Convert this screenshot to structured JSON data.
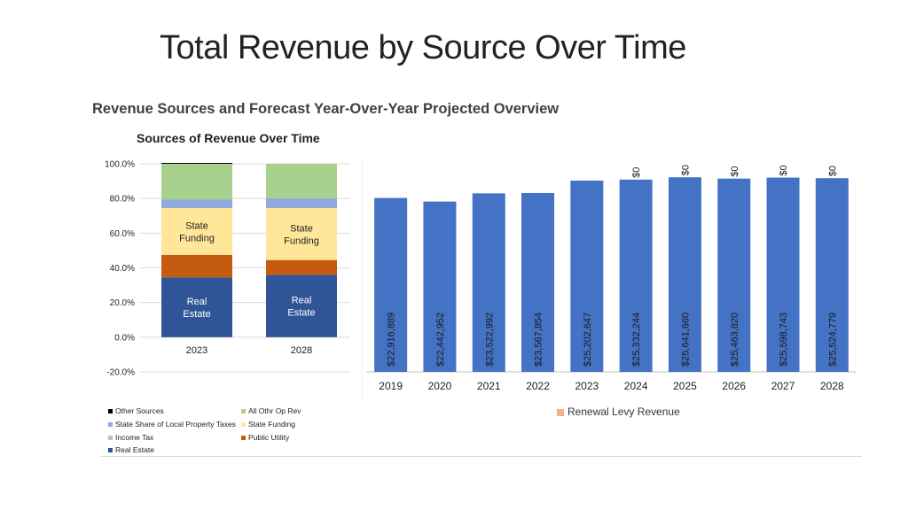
{
  "slide": {
    "title": "Total Revenue by Source Over Time"
  },
  "panel": {
    "title": "Revenue Sources and Forecast Year-Over-Year Projected Overview"
  },
  "colors": {
    "other_sources": "#000000",
    "state_share": "#8EA9DB",
    "income_tax": "#BFBFBF",
    "real_estate": "#2F5597",
    "all_othr_op_rev": "#A9D18E",
    "state_funding": "#FFE699",
    "public_utility": "#C55A11",
    "renewal_levy": "#F4B183",
    "bar_blue": "#4472C4"
  },
  "chart_data": [
    {
      "type": "bar",
      "stacked": true,
      "title": "Sources of Revenue Over Time",
      "categories": [
        "2023",
        "2028"
      ],
      "y_tick_labels": [
        "100.0%",
        "80.0%",
        "60.0%",
        "40.0%",
        "20.0%",
        "0.0%",
        "-20.0%"
      ],
      "ylim": [
        -20,
        100
      ],
      "grid": true,
      "series": [
        {
          "name": "Real Estate",
          "values": [
            34.5,
            36
          ],
          "labels": [
            "Real Estate",
            "Real Estate"
          ]
        },
        {
          "name": "Public Utility",
          "values": [
            13,
            8.5
          ]
        },
        {
          "name": "State Funding",
          "values": [
            27,
            30
          ],
          "labels": [
            "State Funding",
            "State Funding"
          ]
        },
        {
          "name": "State Share of Local Property Taxes",
          "values": [
            5,
            5.5
          ]
        },
        {
          "name": "All Othr Op Rev",
          "values": [
            20.5,
            20
          ]
        },
        {
          "name": "Income Tax",
          "values": [
            0,
            0
          ]
        },
        {
          "name": "Other Sources",
          "values": [
            0.5,
            0
          ]
        }
      ],
      "legend": {
        "position": "bottom",
        "items": [
          {
            "label": "Other Sources",
            "color_key": "other_sources"
          },
          {
            "label": "All Othr Op Rev",
            "color_key": "all_othr_op_rev"
          },
          {
            "label": "State Share of Local Property Taxes",
            "color_key": "state_share"
          },
          {
            "label": "State Funding",
            "color_key": "state_funding"
          },
          {
            "label": "Income Tax",
            "color_key": "income_tax"
          },
          {
            "label": "Public Utility",
            "color_key": "public_utility"
          },
          {
            "label": "Real Estate",
            "color_key": "real_estate"
          }
        ]
      }
    },
    {
      "type": "bar",
      "stacked": true,
      "categories": [
        "2019",
        "2020",
        "2021",
        "2022",
        "2023",
        "2024",
        "2025",
        "2026",
        "2027",
        "2028"
      ],
      "ylim": [
        0,
        28000000
      ],
      "grid": false,
      "series": [
        {
          "name": "",
          "values": [
            22916889,
            22442952,
            23522992,
            23567854,
            25202647,
            25332244,
            25641660,
            25463820,
            25598743,
            25524779
          ],
          "labels": [
            "$22,916,889",
            "$22,442,952",
            "$23,522,992",
            "$23,567,854",
            "$25,202,647",
            "$25,332,244",
            "$25,641,660",
            "$25,463,820",
            "$25,598,743",
            "$25,524,779"
          ]
        },
        {
          "name": "Renewal Levy Revenue",
          "values": [
            null,
            null,
            null,
            null,
            null,
            0,
            0,
            0,
            0,
            0
          ],
          "labels": [
            "",
            "",
            "",
            "",
            "",
            "$0",
            "$0",
            "$0",
            "$0",
            "$0"
          ]
        }
      ],
      "legend": {
        "position": "bottom",
        "items": [
          {
            "label": "Renewal Levy Revenue",
            "color_key": "renewal_levy"
          }
        ]
      }
    }
  ]
}
